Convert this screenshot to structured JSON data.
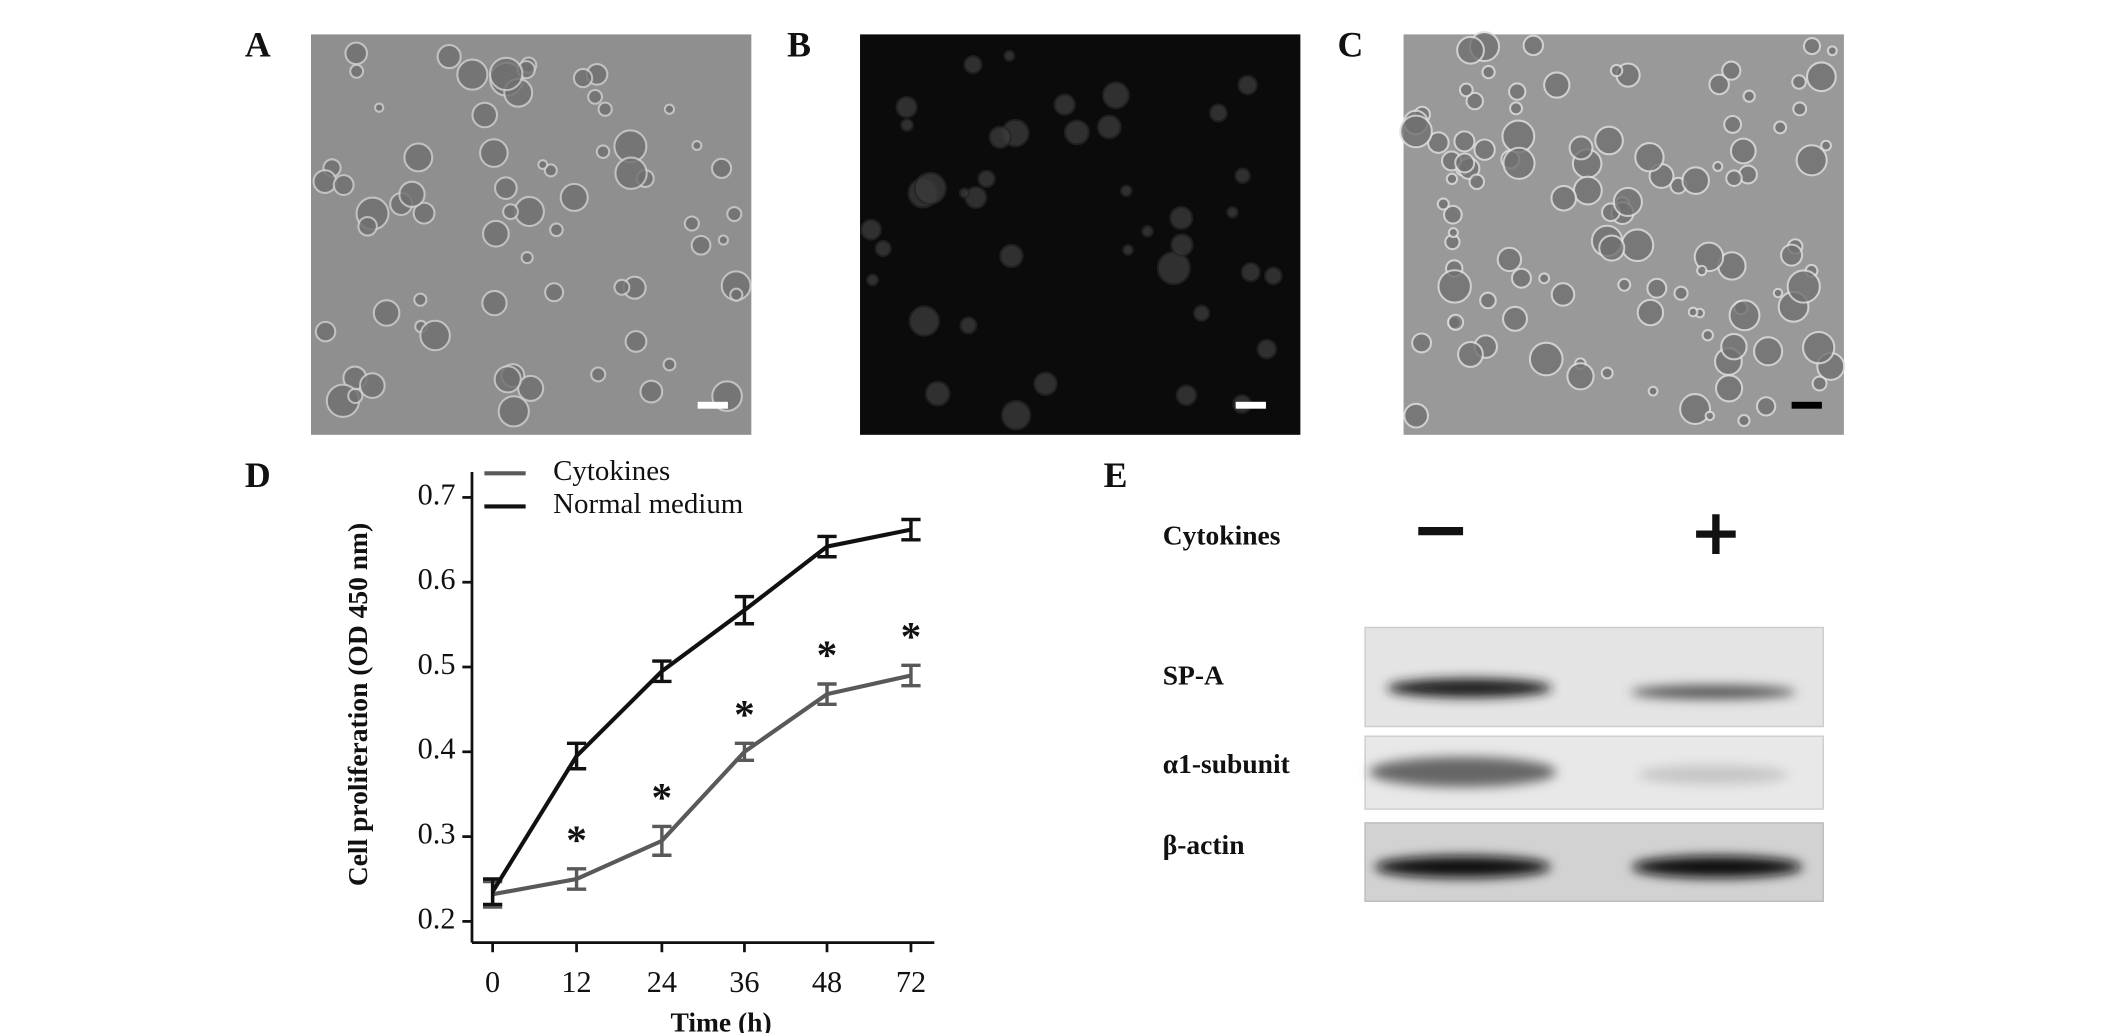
{
  "panel_labels": [
    "A",
    "B",
    "C",
    "D",
    "E"
  ],
  "chart_data": {
    "type": "line",
    "x_label": "Time (h)",
    "y_label": "Cell proliferation (OD 450 nm)",
    "categories": [
      "0",
      "12",
      "24",
      "36",
      "48",
      "72"
    ],
    "series": [
      {
        "name": "Cytokines",
        "color": "#595959",
        "values": [
          0.232,
          0.25,
          0.295,
          0.4,
          0.468,
          0.49
        ],
        "errors": [
          0.015,
          0.012,
          0.017,
          0.01,
          0.012,
          0.012
        ]
      },
      {
        "name": "Normal medium",
        "color": "#111111",
        "values": [
          0.235,
          0.395,
          0.495,
          0.567,
          0.642,
          0.662
        ],
        "errors": [
          0.015,
          0.015,
          0.012,
          0.016,
          0.012,
          0.012
        ]
      }
    ],
    "annotations": [
      {
        "x": "12",
        "text": "*"
      },
      {
        "x": "24",
        "text": "*"
      },
      {
        "x": "36",
        "text": "*"
      },
      {
        "x": "48",
        "text": "*"
      },
      {
        "x": "72",
        "text": "*"
      }
    ],
    "ylim": [
      0.175,
      0.73
    ],
    "yticks": [
      0.2,
      0.3,
      0.4,
      0.5,
      0.6,
      0.7
    ],
    "grid": false
  },
  "blot": {
    "treatment_label": "Cytokines",
    "lanes": [
      "−",
      "+"
    ],
    "bands": [
      "SP-A",
      "α1-subunit",
      "β-actin"
    ]
  }
}
